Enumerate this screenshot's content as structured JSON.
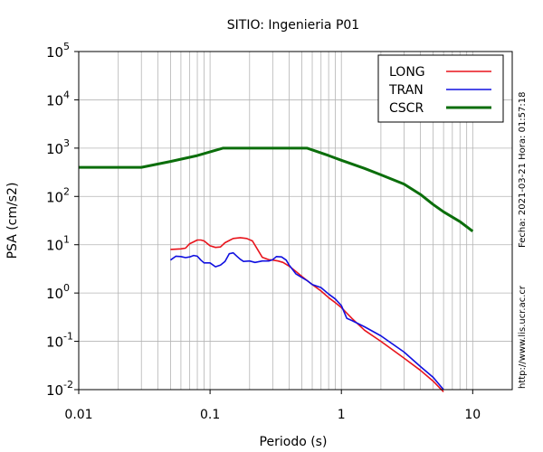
{
  "chart_data": {
    "type": "line",
    "title": "SITIO: Ingenieria P01",
    "xlabel": "Periodo (s)",
    "ylabel": "PSA (cm/s2)",
    "x_scale": "log",
    "y_scale": "log",
    "xlim": [
      0.01,
      20
    ],
    "ylim": [
      0.01,
      100000
    ],
    "x_ticks": [
      {
        "value": 0.01,
        "label": "0.01"
      },
      {
        "value": 0.1,
        "label": "0.1"
      },
      {
        "value": 1,
        "label": "1"
      },
      {
        "value": 10,
        "label": "10"
      }
    ],
    "y_ticks": [
      {
        "value": 0.01,
        "base": "10",
        "exp": "-2"
      },
      {
        "value": 0.1,
        "base": "10",
        "exp": "-1"
      },
      {
        "value": 1,
        "base": "10",
        "exp": "0"
      },
      {
        "value": 10,
        "base": "10",
        "exp": "1"
      },
      {
        "value": 100,
        "base": "10",
        "exp": "2"
      },
      {
        "value": 1000,
        "base": "10",
        "exp": "3"
      },
      {
        "value": 10000,
        "base": "10",
        "exp": "4"
      },
      {
        "value": 100000,
        "base": "10",
        "exp": "5"
      }
    ],
    "grid": true,
    "legend_position": "top-right",
    "series": [
      {
        "name": "LONG",
        "color": "#e8141c",
        "points": [
          [
            0.05,
            8
          ],
          [
            0.06,
            8.2
          ],
          [
            0.065,
            8.5
          ],
          [
            0.07,
            10.5
          ],
          [
            0.075,
            11.5
          ],
          [
            0.08,
            12.5
          ],
          [
            0.085,
            12.5
          ],
          [
            0.09,
            12
          ],
          [
            0.1,
            9.5
          ],
          [
            0.11,
            8.8
          ],
          [
            0.12,
            9
          ],
          [
            0.13,
            11
          ],
          [
            0.15,
            13.5
          ],
          [
            0.17,
            14
          ],
          [
            0.19,
            13.5
          ],
          [
            0.21,
            12
          ],
          [
            0.23,
            8
          ],
          [
            0.25,
            5.5
          ],
          [
            0.28,
            4.9
          ],
          [
            0.3,
            4.8
          ],
          [
            0.33,
            4.6
          ],
          [
            0.36,
            4.3
          ],
          [
            0.4,
            3.6
          ],
          [
            0.45,
            2.8
          ],
          [
            0.5,
            2.2
          ],
          [
            0.6,
            1.5
          ],
          [
            0.7,
            1.1
          ],
          [
            0.8,
            0.8
          ],
          [
            0.9,
            0.63
          ],
          [
            1.0,
            0.5
          ],
          [
            1.2,
            0.3
          ],
          [
            1.5,
            0.17
          ],
          [
            2,
            0.1
          ],
          [
            3,
            0.045
          ],
          [
            4,
            0.025
          ],
          [
            5,
            0.015
          ],
          [
            6,
            0.009
          ]
        ]
      },
      {
        "name": "TRAN",
        "color": "#1010e0",
        "points": [
          [
            0.05,
            4.8
          ],
          [
            0.055,
            5.8
          ],
          [
            0.06,
            5.7
          ],
          [
            0.065,
            5.4
          ],
          [
            0.07,
            5.6
          ],
          [
            0.075,
            6
          ],
          [
            0.08,
            5.8
          ],
          [
            0.085,
            4.8
          ],
          [
            0.09,
            4.2
          ],
          [
            0.1,
            4.2
          ],
          [
            0.11,
            3.5
          ],
          [
            0.12,
            3.8
          ],
          [
            0.13,
            4.5
          ],
          [
            0.14,
            6.5
          ],
          [
            0.15,
            6.8
          ],
          [
            0.16,
            5.8
          ],
          [
            0.17,
            5
          ],
          [
            0.18,
            4.5
          ],
          [
            0.2,
            4.6
          ],
          [
            0.22,
            4.3
          ],
          [
            0.25,
            4.6
          ],
          [
            0.28,
            4.6
          ],
          [
            0.3,
            4.9
          ],
          [
            0.32,
            5.7
          ],
          [
            0.35,
            5.6
          ],
          [
            0.38,
            4.8
          ],
          [
            0.4,
            3.8
          ],
          [
            0.45,
            2.5
          ],
          [
            0.5,
            2.1
          ],
          [
            0.55,
            1.8
          ],
          [
            0.6,
            1.5
          ],
          [
            0.7,
            1.3
          ],
          [
            0.8,
            0.95
          ],
          [
            0.9,
            0.75
          ],
          [
            1.0,
            0.55
          ],
          [
            1.1,
            0.3
          ],
          [
            1.2,
            0.27
          ],
          [
            1.5,
            0.2
          ],
          [
            2,
            0.13
          ],
          [
            3,
            0.06
          ],
          [
            4,
            0.03
          ],
          [
            5,
            0.018
          ],
          [
            6,
            0.01
          ]
        ]
      },
      {
        "name": "CSCR",
        "color": "#0b6e0b",
        "points": [
          [
            0.01,
            400
          ],
          [
            0.03,
            400
          ],
          [
            0.05,
            530
          ],
          [
            0.08,
            700
          ],
          [
            0.125,
            1000
          ],
          [
            0.55,
            1000
          ],
          [
            0.8,
            700
          ],
          [
            1,
            560
          ],
          [
            1.5,
            380
          ],
          [
            2,
            280
          ],
          [
            3,
            180
          ],
          [
            4,
            110
          ],
          [
            5,
            68
          ],
          [
            6,
            48
          ],
          [
            8,
            30
          ],
          [
            10,
            19
          ]
        ]
      }
    ]
  },
  "side": {
    "timestamp": "Fecha: 2021-03-21 Hora: 01:57:18",
    "url": "http://www.lis.ucr.ac.cr"
  }
}
